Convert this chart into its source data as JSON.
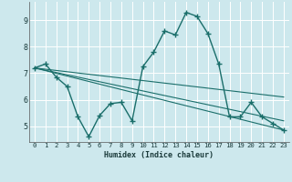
{
  "xlabel": "Humidex (Indice chaleur)",
  "background_color": "#cde8ed",
  "grid_color": "#ffffff",
  "line_color": "#1a6e6a",
  "xlim": [
    -0.5,
    23.5
  ],
  "ylim": [
    4.4,
    9.7
  ],
  "yticks": [
    5,
    6,
    7,
    8,
    9
  ],
  "xticks": [
    0,
    1,
    2,
    3,
    4,
    5,
    6,
    7,
    8,
    9,
    10,
    11,
    12,
    13,
    14,
    15,
    16,
    17,
    18,
    19,
    20,
    21,
    22,
    23
  ],
  "curve1_x": [
    0,
    1,
    2,
    3,
    4,
    5,
    6,
    7,
    8,
    9,
    10,
    11,
    12,
    13,
    14,
    15,
    16,
    17,
    18,
    19,
    20,
    21,
    22,
    23
  ],
  "curve1_y": [
    7.2,
    7.35,
    6.85,
    6.5,
    5.35,
    4.6,
    5.4,
    5.85,
    5.9,
    5.2,
    7.25,
    7.8,
    8.6,
    8.45,
    9.3,
    9.15,
    8.5,
    7.35,
    5.35,
    5.35,
    5.9,
    5.35,
    5.1,
    4.85
  ],
  "line2_x": [
    0,
    23
  ],
  "line2_y": [
    7.2,
    4.85
  ],
  "line3_x": [
    0,
    23
  ],
  "line3_y": [
    7.2,
    5.2
  ],
  "line4_x": [
    0,
    23
  ],
  "line4_y": [
    7.2,
    6.1
  ]
}
